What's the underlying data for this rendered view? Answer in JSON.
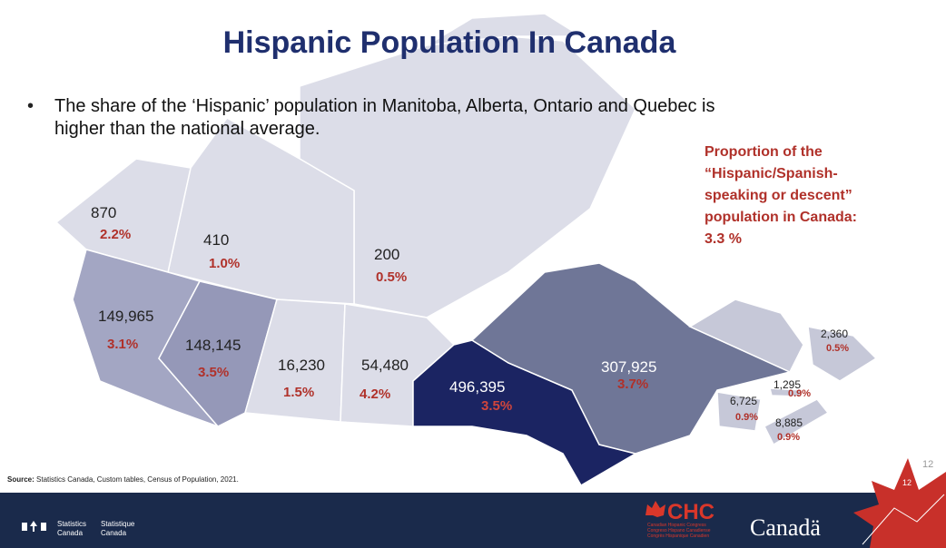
{
  "header": {
    "title": "Hispanic Population In Canada"
  },
  "bullet": [
    "The share of the ‘Hispanic’ population in Manitoba, Alberta, Ontario and Quebec is",
    "higher than the national average."
  ],
  "note": [
    "Proportion of the",
    "“Hispanic/Spanish-",
    "speaking or descent”",
    "population in Canada:",
    "3.3 %"
  ],
  "regions": [
    {
      "count": "870",
      "share": "2.2%"
    },
    {
      "count": "410",
      "share": "1.0%"
    },
    {
      "count": "200",
      "share": "0.5%"
    },
    {
      "count": "149,965",
      "share": "3.1%"
    },
    {
      "count": "148,145",
      "share": "3.5%"
    },
    {
      "count": "16,230",
      "share": "1.5%"
    },
    {
      "count": "54,480",
      "share": "4.2%"
    },
    {
      "count": "496,395",
      "share": "3.5%"
    },
    {
      "count": "307,925",
      "share": "3.7%"
    },
    {
      "count": "2,360",
      "share": "0.5%"
    },
    {
      "count": "1,295",
      "share": "0.9%"
    },
    {
      "count": "6,725",
      "share": "0.9%"
    },
    {
      "count": "8,885",
      "share": "0.9%"
    }
  ],
  "source": {
    "label": "Source:",
    "text": "Statistics Canada, Custom tables, Census of Population, 2021."
  },
  "footer": {
    "statcan_en": [
      "Statistics",
      "Canada"
    ],
    "statcan_fr": [
      "Statistique",
      "Canada"
    ],
    "chc": "CHC",
    "chc_tagline": [
      "Canadian Hispanic Congress",
      "Congreso Hispano Canadiense",
      "Congrès Hispanique Canadien"
    ],
    "canada": "Canadä",
    "page": "12",
    "page_corner": "12"
  }
}
